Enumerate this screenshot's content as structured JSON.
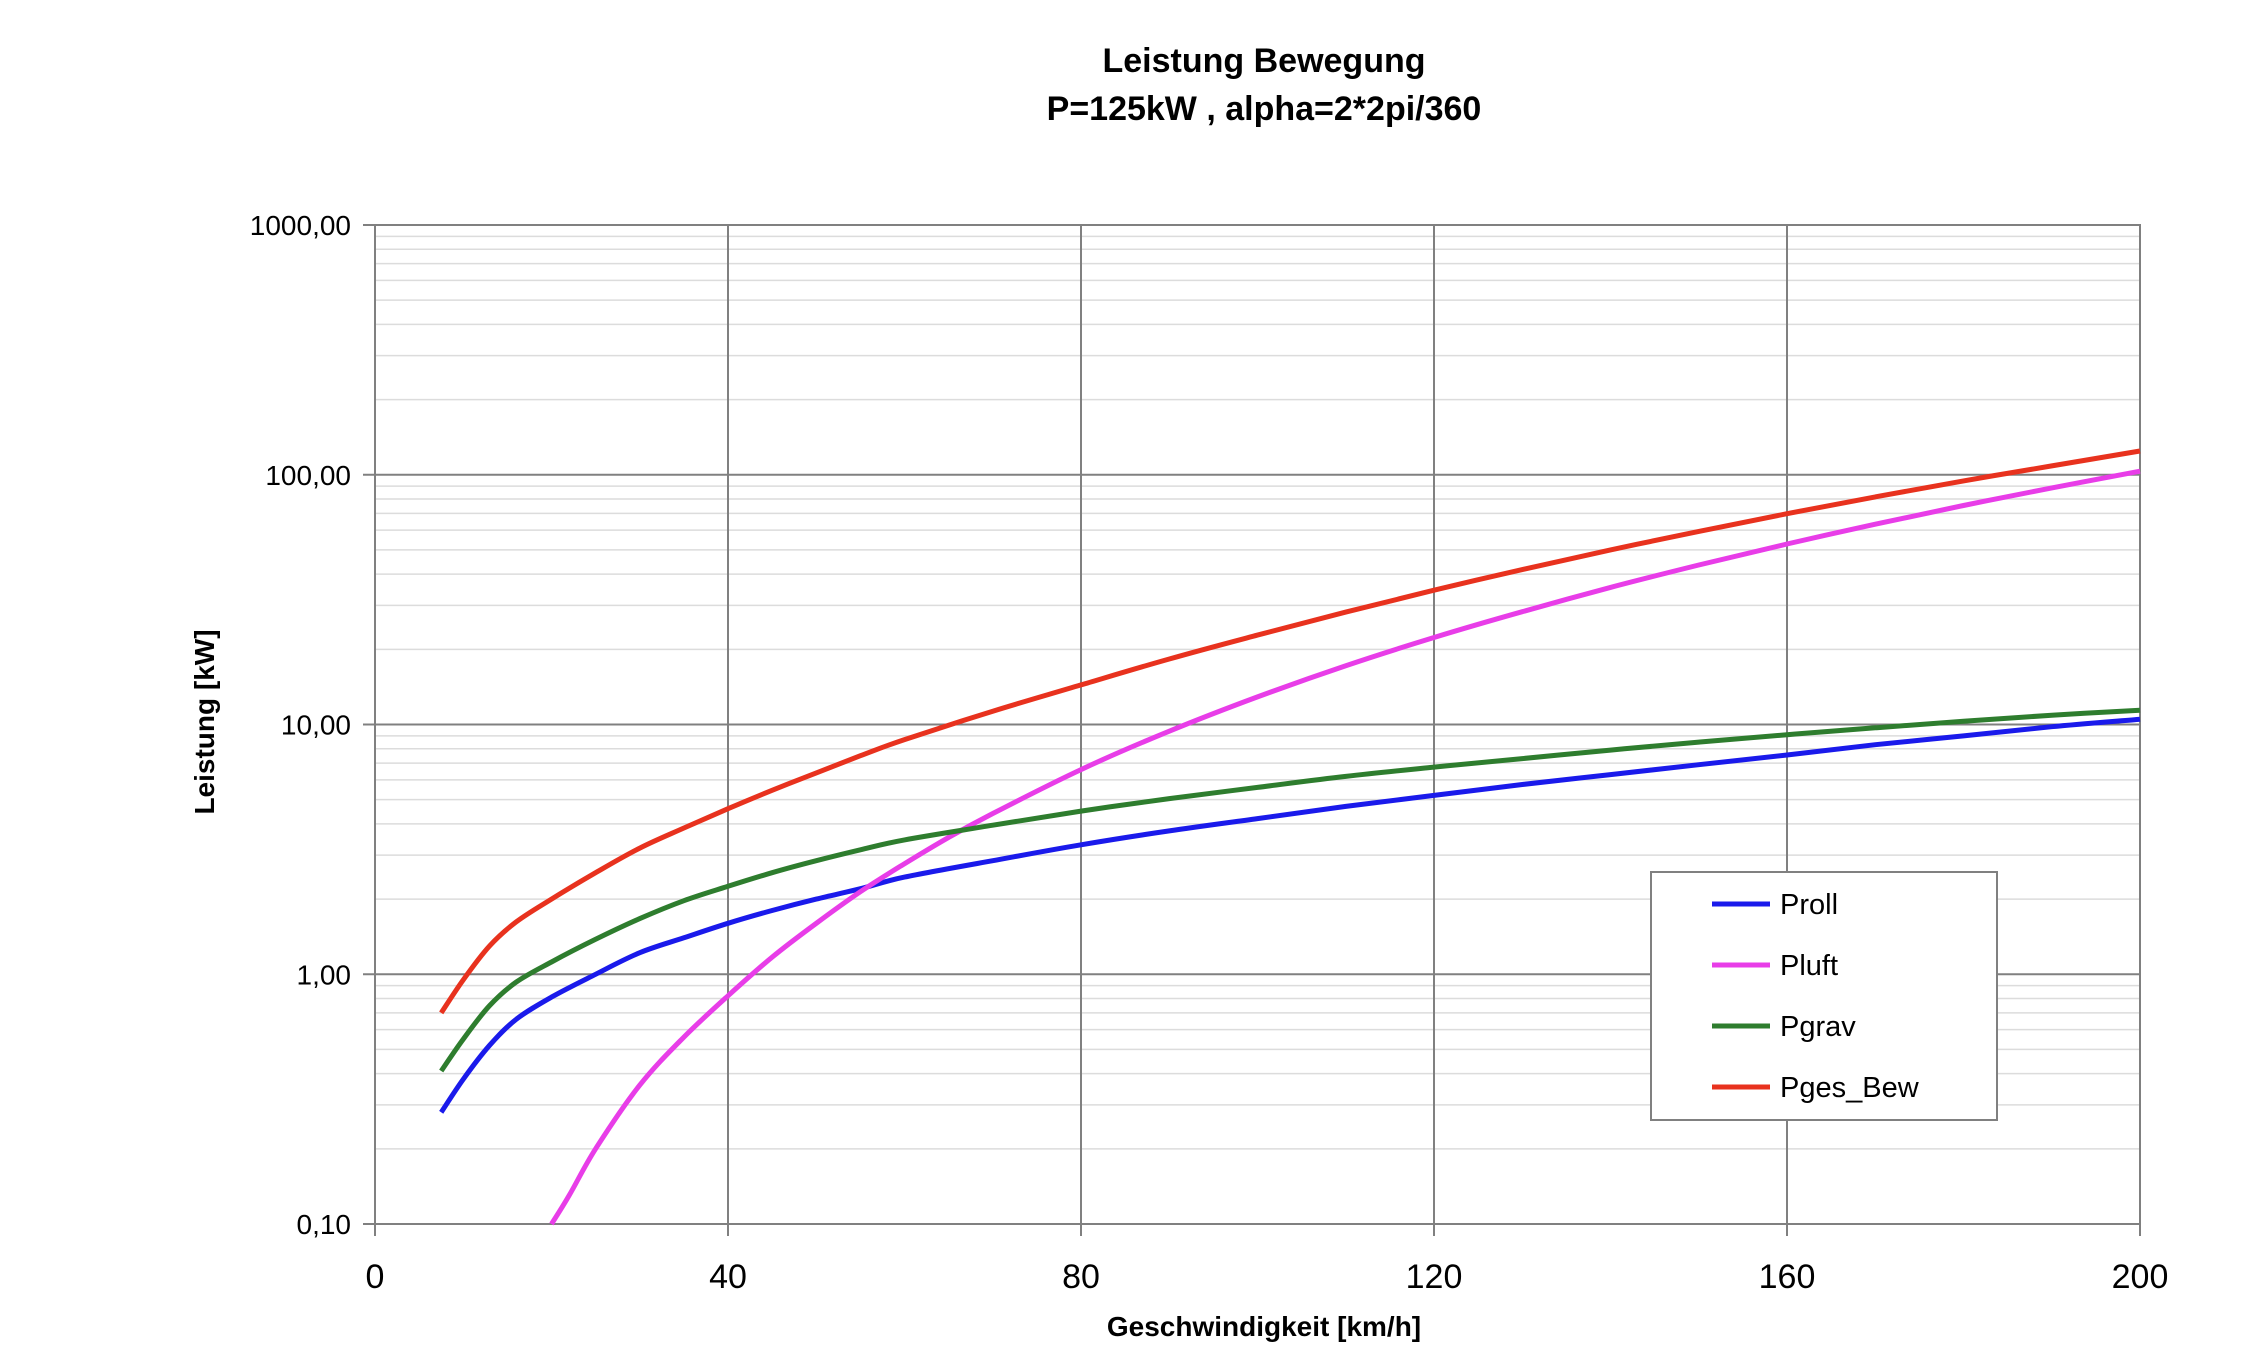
{
  "chart_data": {
    "type": "line",
    "title": "Leistung Bewegung",
    "subtitle": "P=125kW , alpha=2*2pi/360",
    "xlabel": "Geschwindigkeit [km/h]",
    "ylabel": "Leistung [kW]",
    "x_scale": "linear",
    "y_scale": "log",
    "xlim": [
      0,
      200
    ],
    "ylim": [
      0.1,
      1000
    ],
    "x_ticks": [
      0,
      40,
      80,
      120,
      160,
      200
    ],
    "x_tick_labels": [
      "0",
      "40",
      "80",
      "120",
      "160",
      "200"
    ],
    "y_ticks": [
      0.1,
      1,
      10,
      100,
      1000
    ],
    "y_tick_labels": [
      "0,10",
      "1,00",
      "10,00",
      "100,00",
      "1000,00"
    ],
    "grid": true,
    "legend_position": "lower-right",
    "series": [
      {
        "name": "Proll",
        "color": "#1a1aeb",
        "x": [
          7.5,
          10,
          13,
          16,
          20,
          25,
          30,
          35,
          40,
          45,
          50,
          55,
          60,
          70,
          80,
          90,
          100,
          110,
          120,
          130,
          140,
          150,
          160,
          170,
          180,
          190,
          200
        ],
        "y": [
          0.28,
          0.38,
          0.52,
          0.66,
          0.81,
          1.0,
          1.22,
          1.4,
          1.6,
          1.8,
          2.0,
          2.2,
          2.45,
          2.85,
          3.3,
          3.75,
          4.2,
          4.7,
          5.2,
          5.75,
          6.3,
          6.9,
          7.55,
          8.3,
          9.0,
          9.8,
          10.5
        ]
      },
      {
        "name": "Pluft",
        "color": "#e83de8",
        "x": [
          20,
          22,
          25,
          30,
          35,
          40,
          45,
          50,
          55,
          60,
          65,
          70,
          80,
          90,
          100,
          110,
          120,
          130,
          140,
          150,
          160,
          170,
          180,
          190,
          200
        ],
        "y": [
          0.1,
          0.13,
          0.2,
          0.36,
          0.56,
          0.82,
          1.17,
          1.6,
          2.14,
          2.77,
          3.53,
          4.4,
          6.6,
          9.4,
          12.9,
          17.2,
          22.3,
          28.3,
          35.4,
          43.5,
          52.8,
          63.4,
          75.3,
          88.6,
          103.3
        ]
      },
      {
        "name": "Pgrav",
        "color": "#2e7d2e",
        "x": [
          7.5,
          10,
          13,
          16,
          20,
          25,
          30,
          35,
          40,
          45,
          50,
          55,
          60,
          70,
          80,
          90,
          100,
          110,
          120,
          130,
          140,
          150,
          160,
          170,
          180,
          190,
          200
        ],
        "y": [
          0.41,
          0.55,
          0.75,
          0.93,
          1.12,
          1.38,
          1.67,
          1.97,
          2.25,
          2.55,
          2.85,
          3.15,
          3.45,
          3.95,
          4.5,
          5.05,
          5.6,
          6.2,
          6.75,
          7.3,
          7.9,
          8.5,
          9.1,
          9.7,
          10.3,
          10.9,
          11.4
        ]
      },
      {
        "name": "Pges_Bew",
        "color": "#e8321e",
        "x": [
          7.5,
          10,
          13,
          16,
          20,
          25,
          30,
          35,
          40,
          45,
          50,
          55,
          60,
          70,
          80,
          90,
          100,
          110,
          120,
          130,
          140,
          150,
          160,
          170,
          180,
          190,
          200
        ],
        "y": [
          0.7,
          0.95,
          1.3,
          1.62,
          2.0,
          2.55,
          3.2,
          3.85,
          4.6,
          5.45,
          6.4,
          7.5,
          8.7,
          11.3,
          14.4,
          18.3,
          22.8,
          28.2,
          34.5,
          41.7,
          50,
          59.3,
          69.8,
          81.5,
          94.5,
          108.5,
          124.5
        ]
      }
    ]
  }
}
